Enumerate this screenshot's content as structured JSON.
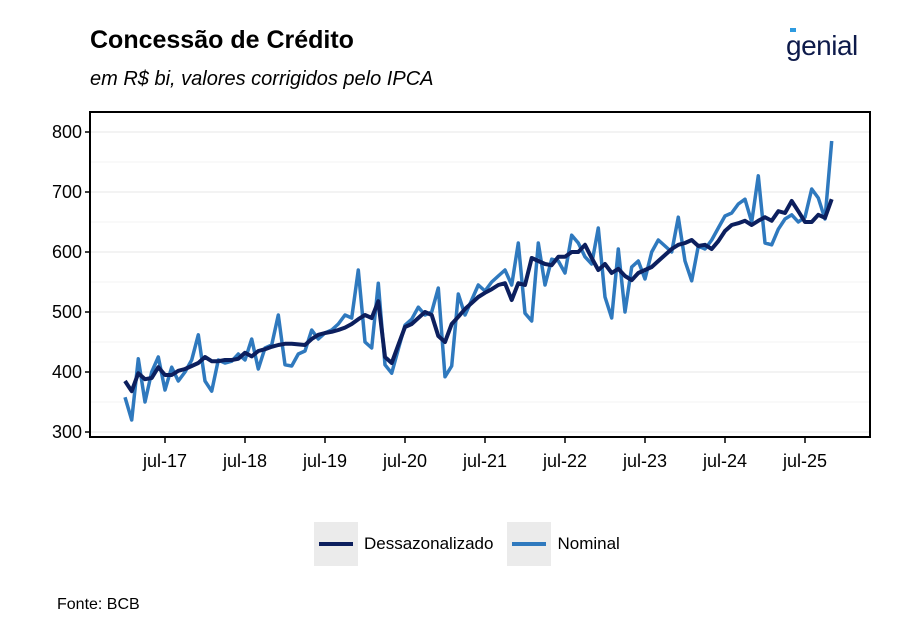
{
  "header": {
    "title": "Concessão de Crédito",
    "subtitle": "em R$ bi, valores corrigidos pelo IPCA",
    "logo": "genial"
  },
  "footer": {
    "source": "Fonte: BCB"
  },
  "colors": {
    "dessazonalizado": "#0c1f5e",
    "nominal": "#2f79be",
    "grid": "#ececec"
  },
  "chart_data": {
    "type": "line",
    "title": "Concessão de Crédito",
    "subtitle": "em R$ bi, valores corrigidos pelo IPCA",
    "x_start": "2017-01",
    "x_end": "2025-11",
    "frequency": "monthly",
    "x_ticks": [
      "jul-17",
      "jul-18",
      "jul-19",
      "jul-20",
      "jul-21",
      "jul-22",
      "jul-23",
      "jul-24",
      "jul-25"
    ],
    "y_ticks": [
      300,
      400,
      500,
      600,
      700,
      800
    ],
    "ylim": [
      290,
      810
    ],
    "grid": true,
    "legend": "bottom",
    "series": [
      {
        "name": "Dessazonalizado",
        "values": [
          385,
          368,
          398,
          388,
          390,
          408,
          395,
          395,
          402,
          405,
          410,
          415,
          425,
          418,
          418,
          420,
          420,
          422,
          432,
          426,
          435,
          438,
          442,
          445,
          447,
          447,
          446,
          445,
          455,
          462,
          465,
          467,
          470,
          474,
          480,
          488,
          495,
          490,
          518,
          425,
          415,
          445,
          475,
          480,
          490,
          500,
          495,
          460,
          450,
          480,
          492,
          505,
          515,
          525,
          532,
          538,
          545,
          548,
          520,
          548,
          545,
          590,
          585,
          580,
          578,
          592,
          592,
          600,
          600,
          612,
          590,
          570,
          580,
          565,
          572,
          560,
          553,
          565,
          570,
          575,
          585,
          595,
          605,
          612,
          615,
          620,
          610,
          612,
          605,
          618,
          635,
          645,
          648,
          652,
          645,
          652,
          658,
          652,
          668,
          665,
          685,
          668,
          650,
          650,
          662,
          657,
          688
        ]
      },
      {
        "name": "Nominal",
        "values": [
          358,
          320,
          422,
          350,
          400,
          425,
          370,
          408,
          385,
          400,
          420,
          462,
          385,
          368,
          420,
          415,
          418,
          430,
          420,
          455,
          405,
          440,
          445,
          495,
          412,
          410,
          430,
          435,
          470,
          455,
          465,
          470,
          480,
          495,
          490,
          570,
          450,
          440,
          548,
          412,
          398,
          438,
          478,
          488,
          508,
          495,
          500,
          540,
          392,
          410,
          530,
          495,
          520,
          545,
          535,
          550,
          560,
          570,
          545,
          615,
          498,
          485,
          615,
          545,
          588,
          585,
          565,
          628,
          615,
          592,
          580,
          640,
          525,
          490,
          605,
          500,
          575,
          585,
          555,
          600,
          620,
          610,
          600,
          658,
          585,
          552,
          610,
          605,
          620,
          640,
          660,
          665,
          680,
          688,
          650,
          727,
          615,
          612,
          638,
          655,
          662,
          650,
          658,
          705,
          690,
          655,
          785
        ]
      }
    ]
  }
}
